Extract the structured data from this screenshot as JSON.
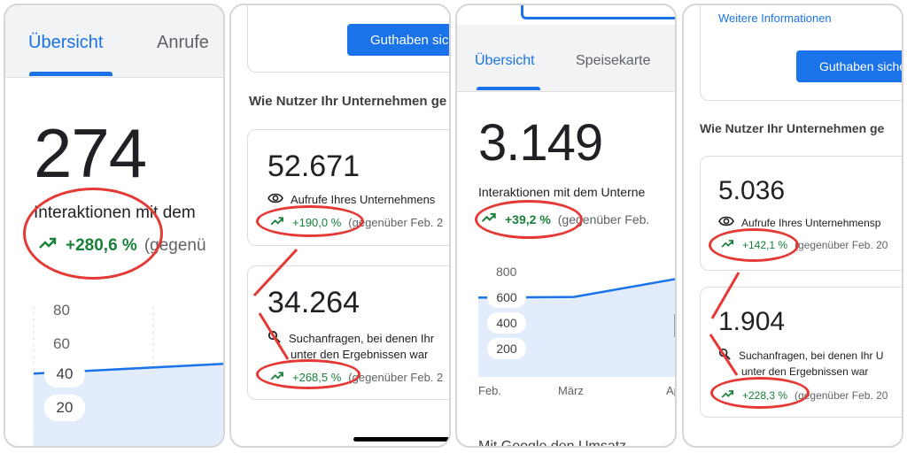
{
  "colors": {
    "accent": "#1a73e8",
    "positive": "#188038",
    "annotation": "#e53935",
    "chart_fill": "#e3ecfc"
  },
  "panel1": {
    "tabs": [
      {
        "label": "Übersicht",
        "active": true
      },
      {
        "label": "Anrufe",
        "active": false
      }
    ],
    "interactions_count": "274",
    "interactions_label": "Interaktionen mit dem",
    "change": "+280,6 %",
    "comparison": "(gegenü",
    "chart_data": {
      "type": "area",
      "y_ticks": [
        "80",
        "60",
        "40",
        "20"
      ],
      "values": [
        43,
        49
      ]
    }
  },
  "panel2": {
    "button_label": "Guthaben sich",
    "section_title": "Wie Nutzer Ihr Unternehmen ge",
    "cards": [
      {
        "value": "52.671",
        "icon": "eye-icon",
        "description": [
          "Aufrufe Ihres Unternehmens"
        ],
        "change": "+190,0 %",
        "comparison": "(gegenüber Feb. 2"
      },
      {
        "value": "34.264",
        "icon": "search-icon",
        "description": [
          "Suchanfragen, bei denen Ihr",
          "unter den Ergebnissen war"
        ],
        "change": "+268,5 %",
        "comparison": "(gegenüber Feb. 2"
      }
    ]
  },
  "panel3": {
    "tabs": [
      {
        "label": "Übersicht",
        "active": true
      },
      {
        "label": "Speisekarte",
        "active": false
      }
    ],
    "interactions_count": "3.149",
    "interactions_label": "Interaktionen mit dem Unterne",
    "change": "+39,2 %",
    "comparison": "(gegenüber Feb.",
    "chart_data": {
      "type": "area",
      "y_ticks": [
        "800",
        "600",
        "400",
        "200"
      ],
      "x_ticks": [
        "Feb.",
        "März",
        "Ap"
      ],
      "x": [
        "Feb.",
        "März",
        "Apr."
      ],
      "values": [
        620,
        625,
        770
      ],
      "ylim": [
        0,
        850
      ]
    },
    "footer_text": "Mit Google den Umsatz"
  },
  "panel4": {
    "link_text": "Weitere Informationen",
    "button_label": "Guthaben siche",
    "section_title": "Wie Nutzer Ihr Unternehmen ge",
    "cards": [
      {
        "value": "5.036",
        "icon": "eye-icon",
        "description": [
          "Aufrufe Ihres Unternehmensp"
        ],
        "change": "+142,1 %",
        "comparison": "(gegenüber Feb. 20"
      },
      {
        "value": "1.904",
        "icon": "search-icon",
        "description": [
          "Suchanfragen, bei denen Ihr U",
          "unter den Ergebnissen war"
        ],
        "change": "+228,3 %",
        "comparison": "(gegenüber Feb. 20"
      }
    ]
  }
}
